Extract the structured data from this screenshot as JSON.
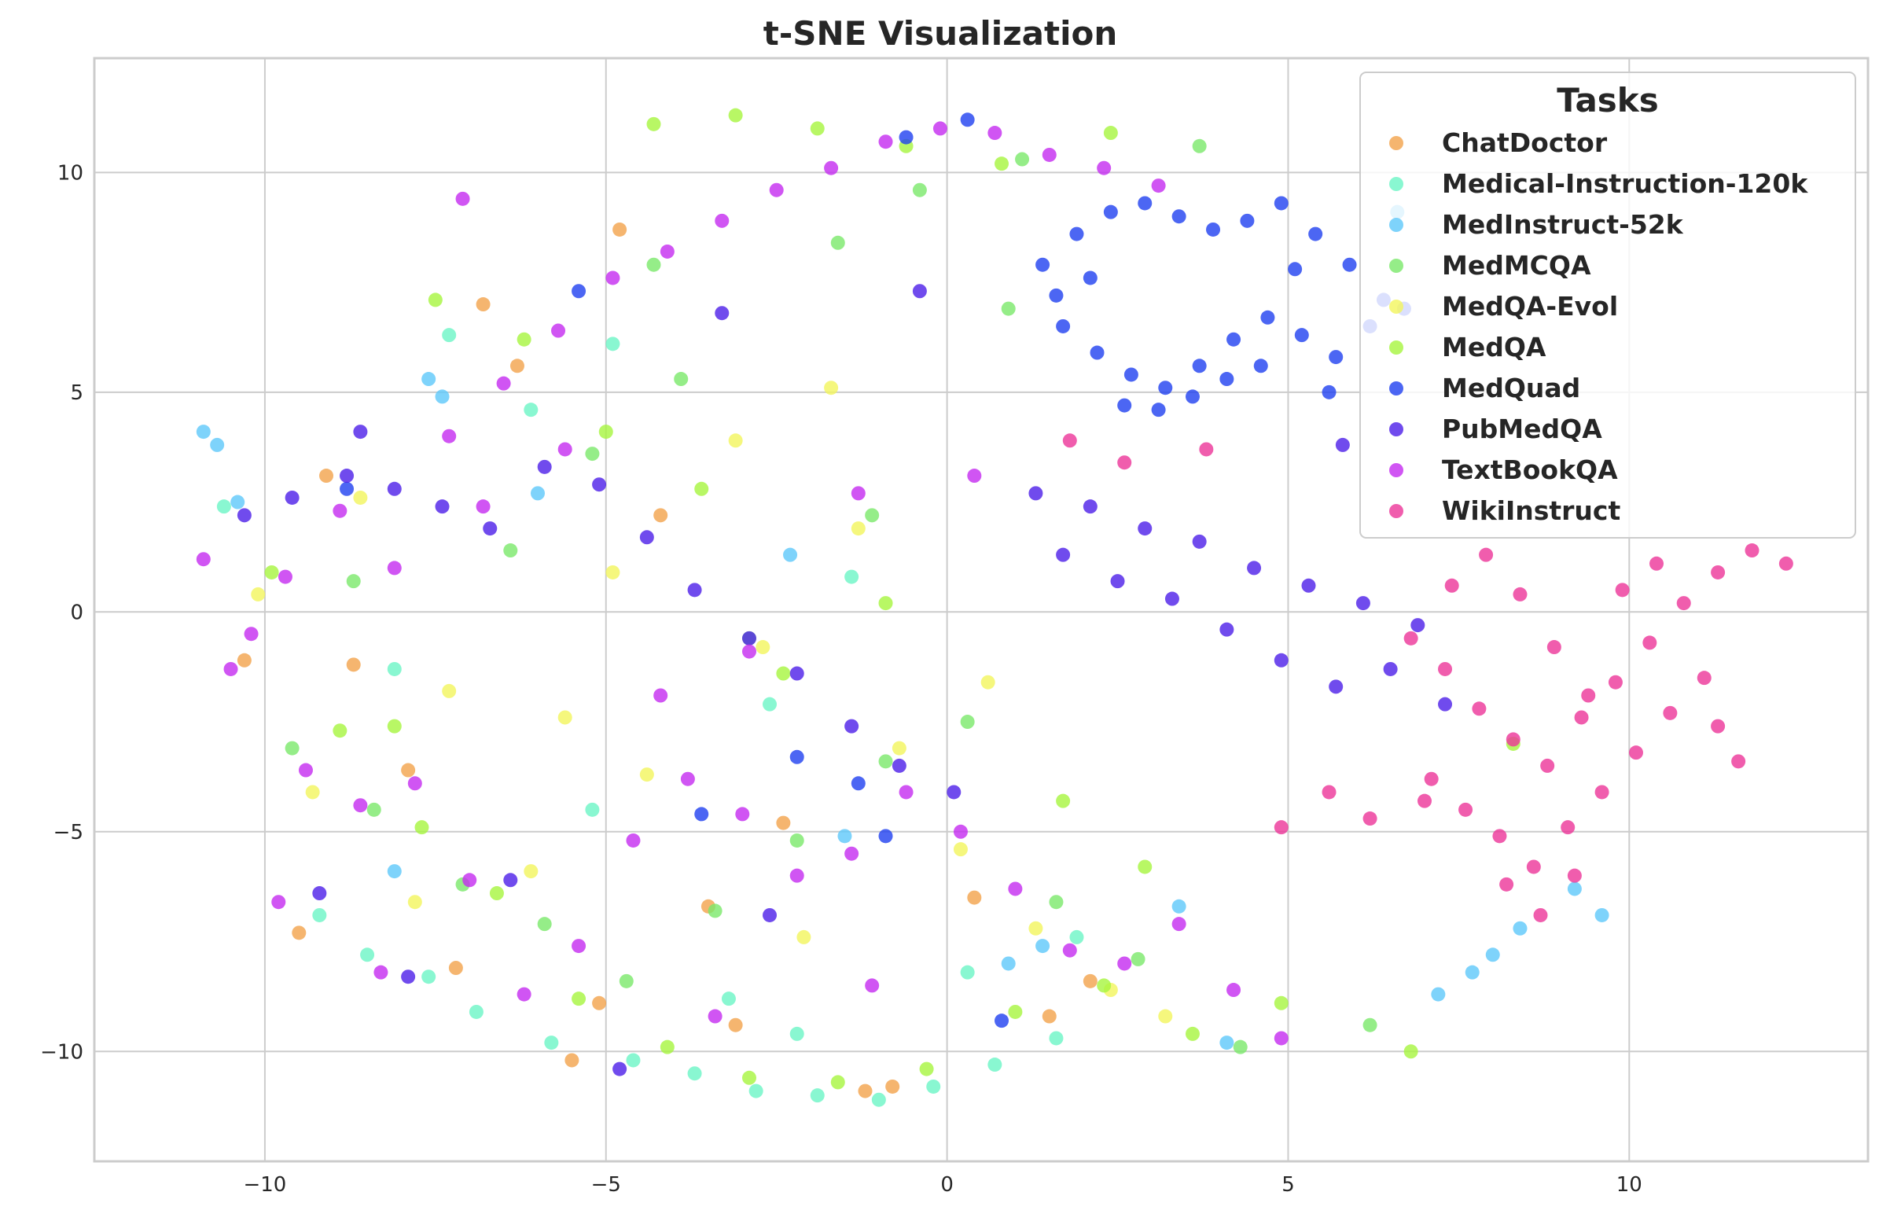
{
  "chart_data": {
    "type": "scatter",
    "title": "t-SNE Visualization",
    "xlabel": "",
    "ylabel": "",
    "xlim": [
      -12.5,
      13.5
    ],
    "ylim": [
      -12.5,
      12.6
    ],
    "x_ticks": [
      -10,
      -5,
      0,
      5,
      10
    ],
    "x_tick_labels": [
      "−10",
      "−5",
      "0",
      "5",
      "10"
    ],
    "y_ticks": [
      -10,
      -5,
      0,
      5,
      10
    ],
    "y_tick_labels": [
      "−10",
      "−5",
      "0",
      "5",
      "10"
    ],
    "grid": true,
    "legend": {
      "title": "Tasks",
      "placement": "top-right"
    },
    "series": [
      {
        "name": "ChatDoctor",
        "color": "#f2a24b",
        "x": [
          -4.8,
          -3.1,
          -9.5,
          -7.2,
          -5.5,
          -1.2,
          0.4,
          2.1,
          -8.7,
          -6.3,
          -2.4,
          -10.3,
          -4.2,
          -0.8,
          1.5,
          -9.1,
          -3.5,
          -6.8,
          -5.1,
          -7.9
        ],
        "y": [
          8.7,
          -9.4,
          -7.3,
          -8.1,
          -10.2,
          -10.9,
          -6.5,
          -8.4,
          -1.2,
          5.6,
          -4.8,
          -1.1,
          2.2,
          -10.8,
          -9.2,
          3.1,
          -6.7,
          7.0,
          -8.9,
          -3.6
        ]
      },
      {
        "name": "Medical-Instruction-120k",
        "color": "#6bf5c6",
        "x": [
          -8.5,
          -7.6,
          -6.9,
          -5.8,
          -4.6,
          -3.7,
          -2.8,
          -1.9,
          -1.0,
          -0.2,
          0.7,
          1.6,
          -9.2,
          -8.1,
          -3.2,
          -2.2,
          -10.6,
          -6.1,
          -4.9,
          0.3,
          1.9,
          -7.3,
          -5.2,
          -2.6,
          -1.4
        ],
        "y": [
          -7.8,
          -8.3,
          -9.1,
          -9.8,
          -10.2,
          -10.5,
          -10.9,
          -11.0,
          -11.1,
          -10.8,
          -10.3,
          -9.7,
          -6.9,
          -1.3,
          -8.8,
          -9.6,
          2.4,
          4.6,
          6.1,
          -8.2,
          -7.4,
          6.3,
          -4.5,
          -2.1,
          0.8
        ]
      },
      {
        "name": "MedInstruct-52k",
        "color": "#5ec8fa",
        "x": [
          -10.9,
          -10.7,
          -10.4,
          -7.6,
          -7.4,
          8.0,
          8.4,
          7.7,
          7.2,
          -6.0,
          0.9,
          1.4,
          -1.5,
          3.4,
          4.1,
          6.6,
          9.6,
          9.2,
          -2.3,
          -8.1
        ],
        "y": [
          4.1,
          3.8,
          2.5,
          5.3,
          4.9,
          -7.8,
          -7.2,
          -8.2,
          -8.7,
          2.7,
          -8.0,
          -7.6,
          -5.1,
          -6.7,
          -9.8,
          9.1,
          -6.9,
          -6.3,
          1.3,
          -5.9
        ]
      },
      {
        "name": "MedMCQA",
        "color": "#7ae86a",
        "x": [
          -9.6,
          -8.4,
          -7.1,
          -5.9,
          -4.7,
          -3.4,
          -2.2,
          -0.9,
          0.3,
          1.6,
          2.8,
          -6.4,
          -5.2,
          -3.9,
          -1.6,
          -0.4,
          1.1,
          3.7,
          -8.7,
          -2.9,
          4.3,
          6.2,
          -4.3,
          -1.1,
          0.9
        ],
        "y": [
          -3.1,
          -4.5,
          -6.2,
          -7.1,
          -8.4,
          -6.8,
          -5.2,
          -3.4,
          -2.5,
          -6.6,
          -7.9,
          1.4,
          3.6,
          5.3,
          8.4,
          9.6,
          10.3,
          10.6,
          0.7,
          -0.6,
          -9.9,
          -9.4,
          7.9,
          2.2,
          6.9
        ]
      },
      {
        "name": "MedQA-Evol",
        "color": "#f2f55c",
        "x": [
          -10.1,
          -8.6,
          -7.3,
          -6.1,
          -4.4,
          -2.7,
          -1.3,
          0.2,
          1.3,
          -5.6,
          -3.1,
          -0.7,
          2.4,
          -9.3,
          -7.8,
          -4.9,
          -2.1,
          -1.7,
          0.6,
          3.2
        ],
        "y": [
          0.4,
          2.6,
          -1.8,
          -5.9,
          -3.7,
          -0.8,
          1.9,
          -5.4,
          -7.2,
          -2.4,
          3.9,
          -3.1,
          -8.6,
          -4.1,
          -6.6,
          0.9,
          -7.4,
          5.1,
          -1.6,
          -9.2
        ]
      },
      {
        "name": "MedQA",
        "color": "#a6f53f",
        "x": [
          -9.9,
          -8.9,
          -7.7,
          -6.6,
          -5.4,
          -4.1,
          -2.9,
          -1.6,
          -0.3,
          1.0,
          2.3,
          3.6,
          -4.3,
          -3.1,
          -1.9,
          -0.6,
          0.8,
          2.4,
          -7.5,
          -6.2,
          -5.0,
          -2.4,
          1.7,
          4.9,
          6.8,
          8.3,
          -8.1,
          -3.6,
          -0.9,
          2.9
        ],
        "y": [
          0.9,
          -2.7,
          -4.9,
          -6.4,
          -8.8,
          -9.9,
          -10.6,
          -10.7,
          -10.4,
          -9.1,
          -8.5,
          -9.6,
          11.1,
          11.3,
          11.0,
          10.6,
          10.2,
          10.9,
          7.1,
          6.2,
          4.1,
          -1.4,
          -4.3,
          -8.9,
          -10.0,
          -3.0,
          -2.6,
          2.8,
          0.2,
          -5.8
        ]
      },
      {
        "name": "MedQuad",
        "color": "#1f40f0",
        "x": [
          1.4,
          1.9,
          2.4,
          2.9,
          3.4,
          3.9,
          4.4,
          4.9,
          5.4,
          5.9,
          6.4,
          1.7,
          2.2,
          2.7,
          3.2,
          3.7,
          4.2,
          4.7,
          5.2,
          5.7,
          6.2,
          6.7,
          1.6,
          2.1,
          2.6,
          3.1,
          3.6,
          4.1,
          4.6,
          5.1,
          5.6,
          0.3,
          -0.6,
          -1.3,
          -3.6,
          -5.4,
          -8.8,
          -2.2,
          -0.9,
          0.8
        ],
        "y": [
          7.9,
          8.6,
          9.1,
          9.3,
          9.0,
          8.7,
          8.9,
          9.3,
          8.6,
          7.9,
          7.1,
          6.5,
          5.9,
          5.4,
          5.1,
          5.6,
          6.2,
          6.7,
          6.3,
          5.8,
          6.5,
          6.9,
          7.2,
          7.6,
          4.7,
          4.6,
          4.9,
          5.3,
          5.6,
          7.8,
          5.0,
          11.2,
          10.8,
          -3.9,
          -4.6,
          7.3,
          2.8,
          -3.3,
          -5.1,
          -9.3
        ]
      },
      {
        "name": "PubMedQA",
        "color": "#4c1ee8",
        "x": [
          1.3,
          2.1,
          2.9,
          3.7,
          4.5,
          5.3,
          6.1,
          6.9,
          1.7,
          2.5,
          3.3,
          4.1,
          4.9,
          5.7,
          6.5,
          7.3,
          -10.3,
          -9.6,
          -8.8,
          -8.1,
          -7.4,
          -6.7,
          -5.9,
          -5.1,
          -4.4,
          -3.7,
          -2.9,
          -2.2,
          -1.4,
          -0.7,
          0.1,
          -9.2,
          -7.9,
          -4.8,
          -2.6,
          -6.4,
          -8.6,
          -3.3,
          -0.4,
          5.8
        ],
        "y": [
          2.7,
          2.4,
          1.9,
          1.6,
          1.0,
          0.6,
          0.2,
          -0.3,
          1.3,
          0.7,
          0.3,
          -0.4,
          -1.1,
          -1.7,
          -1.3,
          -2.1,
          2.2,
          2.6,
          3.1,
          2.8,
          2.4,
          1.9,
          3.3,
          2.9,
          1.7,
          0.5,
          -0.6,
          -1.4,
          -2.6,
          -3.5,
          -4.1,
          -6.4,
          -8.3,
          -10.4,
          -6.9,
          -6.1,
          4.1,
          6.8,
          7.3,
          3.8
        ]
      },
      {
        "name": "TextBookQA",
        "color": "#c42bf0",
        "x": [
          -10.9,
          -10.2,
          -9.4,
          -8.6,
          -7.8,
          -7.0,
          -6.2,
          -5.4,
          -4.6,
          -3.8,
          -3.0,
          -2.2,
          -1.4,
          -0.6,
          0.2,
          1.0,
          1.8,
          2.6,
          3.4,
          4.2,
          -10.5,
          -9.7,
          -8.9,
          -8.1,
          -7.3,
          -6.5,
          -5.7,
          -4.9,
          -4.1,
          -3.3,
          -2.5,
          -1.7,
          -0.9,
          -0.1,
          0.7,
          1.5,
          2.3,
          3.1,
          -6.8,
          -5.6,
          -4.2,
          -2.9,
          -1.3,
          0.4,
          -3.4,
          -1.1,
          -9.8,
          -8.3,
          4.9,
          -7.1
        ],
        "y": [
          1.2,
          -0.5,
          -3.6,
          -4.4,
          -3.9,
          -6.1,
          -8.7,
          -7.6,
          -5.2,
          -3.8,
          -4.6,
          -6.0,
          -5.5,
          -4.1,
          -5.0,
          -6.3,
          -7.7,
          -8.0,
          -7.1,
          -8.6,
          -1.3,
          0.8,
          2.3,
          1.0,
          4.0,
          5.2,
          6.4,
          7.6,
          8.2,
          8.9,
          9.6,
          10.1,
          10.7,
          11.0,
          10.9,
          10.4,
          10.1,
          9.7,
          2.4,
          3.7,
          -1.9,
          -0.9,
          2.7,
          3.1,
          -9.2,
          -8.5,
          -6.6,
          -8.2,
          -9.7,
          9.4
        ]
      },
      {
        "name": "WikiInstruct",
        "color": "#ec3598",
        "x": [
          6.8,
          7.3,
          7.8,
          8.3,
          8.8,
          9.3,
          9.8,
          10.3,
          10.8,
          11.3,
          11.8,
          12.3,
          7.1,
          7.6,
          8.1,
          8.6,
          9.1,
          9.6,
          10.1,
          10.6,
          11.1,
          7.4,
          7.9,
          8.4,
          8.9,
          9.4,
          9.9,
          10.4,
          8.2,
          8.7,
          9.2,
          7.0,
          6.2,
          5.6,
          4.9,
          3.8,
          2.6,
          1.8,
          11.3,
          11.6
        ],
        "y": [
          -0.6,
          -1.3,
          -2.2,
          -2.9,
          -3.5,
          -2.4,
          -1.6,
          -0.7,
          0.2,
          0.9,
          1.4,
          1.1,
          -3.8,
          -4.5,
          -5.1,
          -5.8,
          -4.9,
          -4.1,
          -3.2,
          -2.3,
          -1.5,
          0.6,
          1.3,
          0.4,
          -0.8,
          -1.9,
          0.5,
          1.1,
          -6.2,
          -6.9,
          -6.0,
          -4.3,
          -4.7,
          -4.1,
          -4.9,
          3.7,
          3.4,
          3.9,
          -2.6,
          -3.4
        ]
      }
    ]
  }
}
